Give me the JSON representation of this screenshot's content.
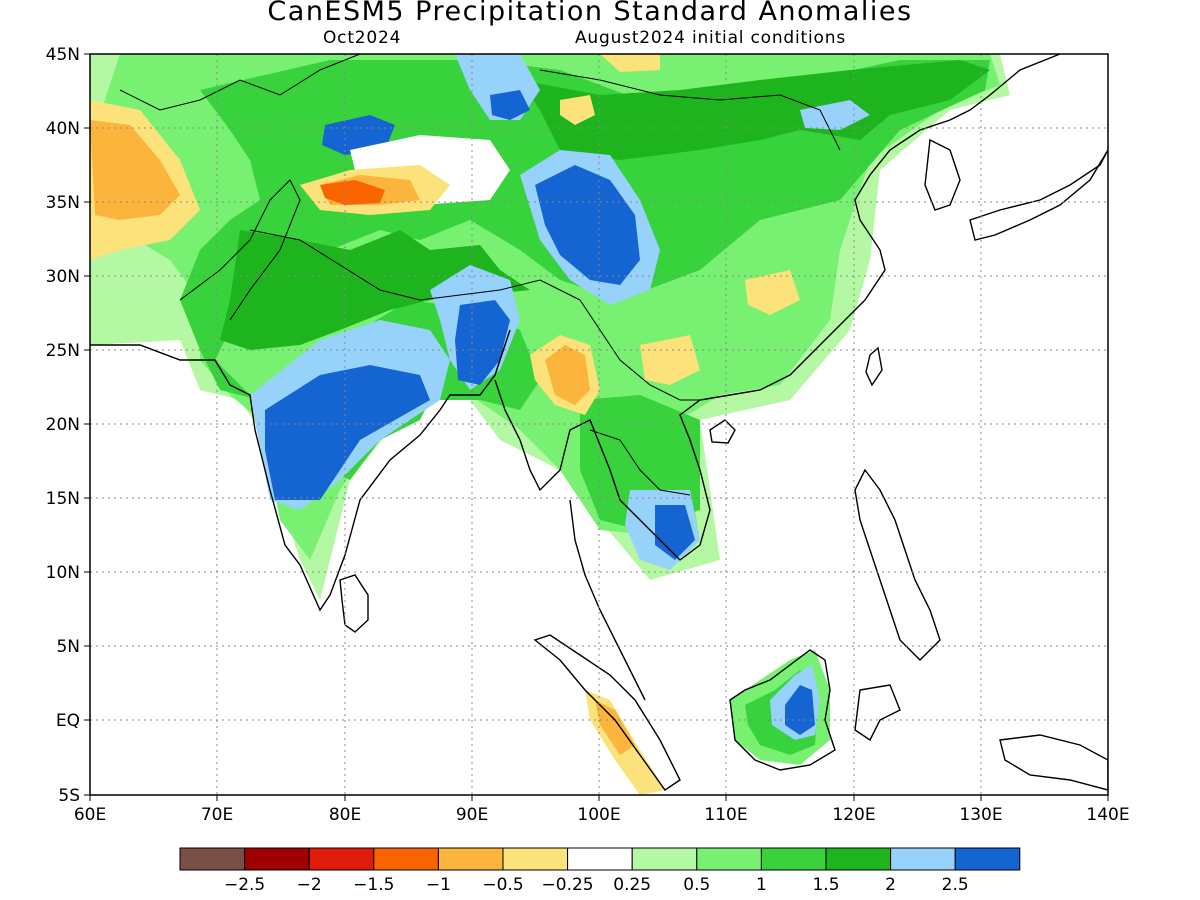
{
  "title": "CanESM5 Precipitation Standard Anomalies",
  "subtitle_left": "Oct2024",
  "subtitle_right": "August2024 initial conditions",
  "map": {
    "projection": "lat-lon",
    "lon_range": [
      60,
      140
    ],
    "lat_range": [
      -5,
      45
    ],
    "lon_labels": [
      "60E",
      "70E",
      "80E",
      "90E",
      "100E",
      "110E",
      "120E",
      "130E",
      "140E"
    ],
    "lat_labels": [
      "45N",
      "40N",
      "35N",
      "30N",
      "25N",
      "20N",
      "15N",
      "10N",
      "5N",
      "EQ",
      "5S"
    ],
    "gridlines": "dotted",
    "ocean_masked": true
  },
  "legend": {
    "colors": [
      "#7a5046",
      "#a00000",
      "#e01b0b",
      "#fa6400",
      "#fbb53c",
      "#fce27a",
      "#ffffff",
      "#b4f8a4",
      "#78f072",
      "#37d23c",
      "#1eb41e",
      "#96d2fa",
      "#1464d2"
    ],
    "labels": [
      "−2.5",
      "−2",
      "−1.5",
      "−1",
      "−0.5",
      "−0.25",
      "0.25",
      "0.5",
      "1",
      "1.5",
      "2",
      "2.5"
    ]
  }
}
